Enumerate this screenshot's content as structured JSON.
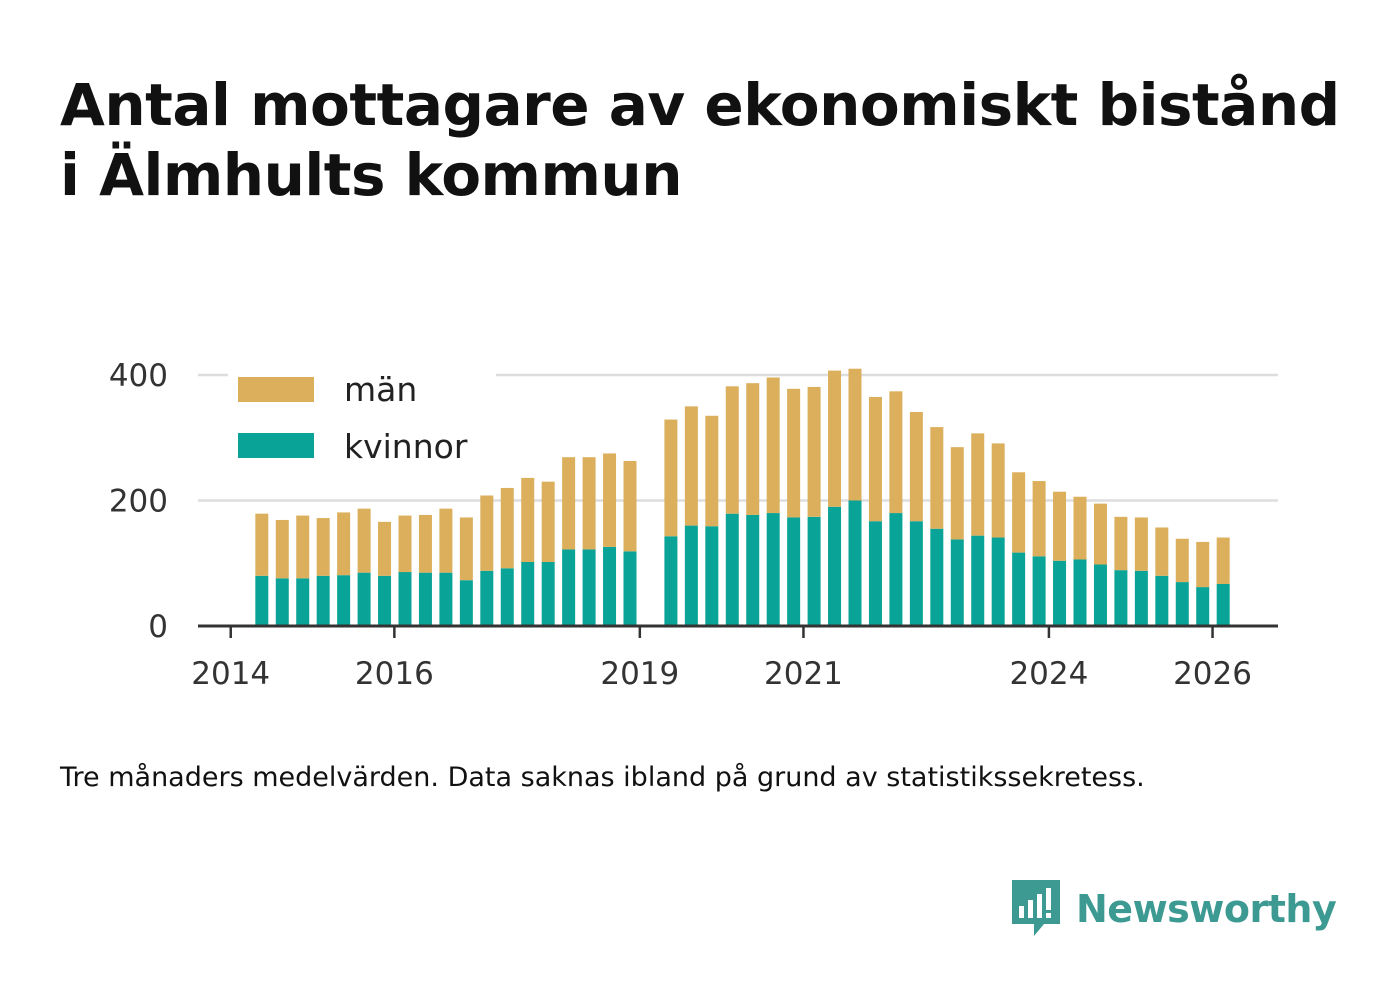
{
  "title_lines": [
    "Antal mottagare av ekonomiskt bistånd",
    "i Älmhults kommun"
  ],
  "caption": "Tre månaders medelvärden. Data saknas ibland på grund av statistikssekretess.",
  "brand": {
    "name": "Newsworthy",
    "icon": "bar-chart-speech-bubble-icon",
    "color": "#3d9a92"
  },
  "colors": {
    "men": "#dcaf5c",
    "women": "#0aa397",
    "grid": "#dddddd",
    "axis": "#333333"
  },
  "chart_data": {
    "type": "bar",
    "stacked": true,
    "title": "Antal mottagare av ekonomiskt bistånd i Älmhults kommun",
    "xlabel": "",
    "ylabel": "",
    "ylim": [
      0,
      400
    ],
    "yticks": [
      0,
      200,
      400
    ],
    "xticks": [
      "2014",
      "2016",
      "2019",
      "2021",
      "2024",
      "2026"
    ],
    "xlim": [
      2013.6,
      2026.8
    ],
    "grid": true,
    "legend_position": "top-left",
    "x": [
      2014.38,
      2014.63,
      2014.88,
      2015.13,
      2015.38,
      2015.63,
      2015.88,
      2016.13,
      2016.38,
      2016.63,
      2016.88,
      2017.13,
      2017.38,
      2017.63,
      2017.88,
      2018.13,
      2018.38,
      2018.63,
      2018.88,
      2019.38,
      2019.63,
      2019.88,
      2020.13,
      2020.38,
      2020.63,
      2020.88,
      2021.13,
      2021.38,
      2021.63,
      2021.88,
      2022.13,
      2022.38,
      2022.63,
      2022.88,
      2023.13,
      2023.38,
      2023.63,
      2023.88,
      2024.13,
      2024.38,
      2024.63,
      2024.88,
      2025.13,
      2025.38,
      2025.63,
      2025.88,
      2026.13
    ],
    "series": [
      {
        "name": "kvinnor",
        "values": [
          80,
          76,
          76,
          80,
          81,
          85,
          80,
          86,
          85,
          85,
          73,
          88,
          92,
          102,
          102,
          122,
          122,
          126,
          119,
          143,
          160,
          159,
          179,
          177,
          180,
          173,
          174,
          190,
          200,
          167,
          180,
          167,
          155,
          138,
          144,
          141,
          117,
          111,
          104,
          106,
          98,
          89,
          88,
          80,
          70,
          62,
          67
        ]
      },
      {
        "name": "män",
        "values": [
          99,
          93,
          100,
          92,
          100,
          102,
          86,
          90,
          92,
          102,
          100,
          120,
          128,
          134,
          128,
          147,
          147,
          149,
          144,
          186,
          190,
          176,
          203,
          210,
          216,
          205,
          207,
          217,
          210,
          198,
          194,
          174,
          162,
          147,
          163,
          150,
          128,
          120,
          110,
          100,
          97,
          85,
          85,
          77,
          69,
          72,
          74
        ]
      }
    ],
    "legend": [
      "män",
      "kvinnor"
    ]
  }
}
